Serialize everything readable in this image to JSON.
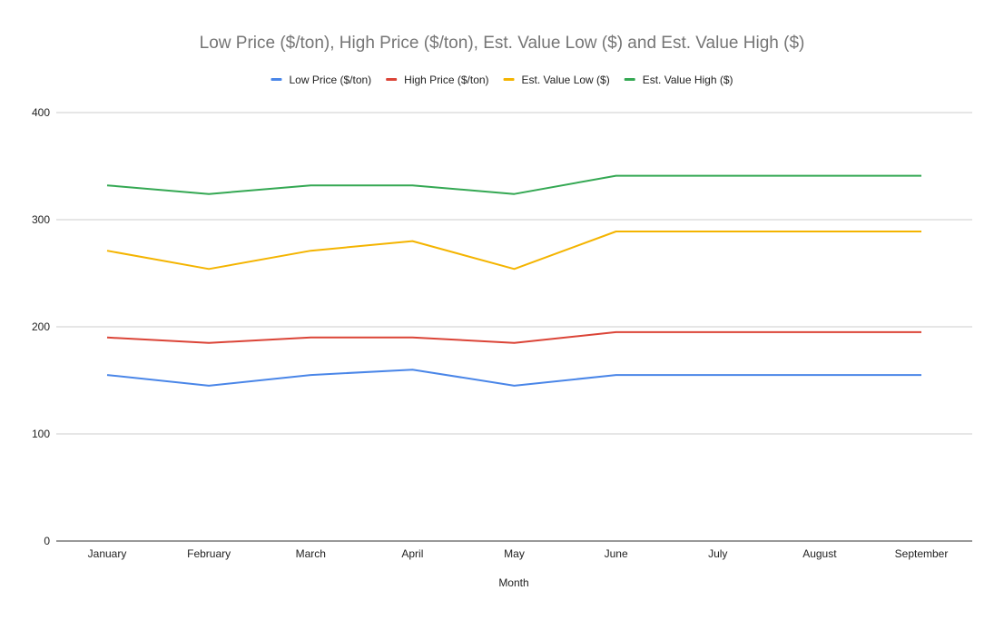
{
  "chart_data": {
    "type": "line",
    "title": "Low Price ($/ton), High Price ($/ton), Est. Value Low ($) and Est. Value High ($)",
    "xlabel": "Month",
    "ylabel": "",
    "ylim": [
      0,
      400
    ],
    "yticks": [
      0,
      100,
      200,
      300,
      400
    ],
    "grid": true,
    "legend_position": "top",
    "categories": [
      "January",
      "February",
      "March",
      "April",
      "May",
      "June",
      "July",
      "August",
      "September"
    ],
    "series": [
      {
        "name": "Low Price ($/ton)",
        "color": "#4a86e8",
        "values": [
          155,
          145,
          155,
          160,
          145,
          155,
          155,
          155,
          155
        ]
      },
      {
        "name": "High Price ($/ton)",
        "color": "#db4437",
        "values": [
          190,
          185,
          190,
          190,
          185,
          195,
          195,
          195,
          195
        ]
      },
      {
        "name": "Est. Value Low ($)",
        "color": "#f4b400",
        "values": [
          271,
          254,
          271,
          280,
          254,
          289,
          289,
          289,
          289
        ]
      },
      {
        "name": "Est. Value High ($)",
        "color": "#34a853",
        "values": [
          332,
          324,
          332,
          332,
          324,
          341,
          341,
          341,
          341
        ]
      }
    ]
  }
}
